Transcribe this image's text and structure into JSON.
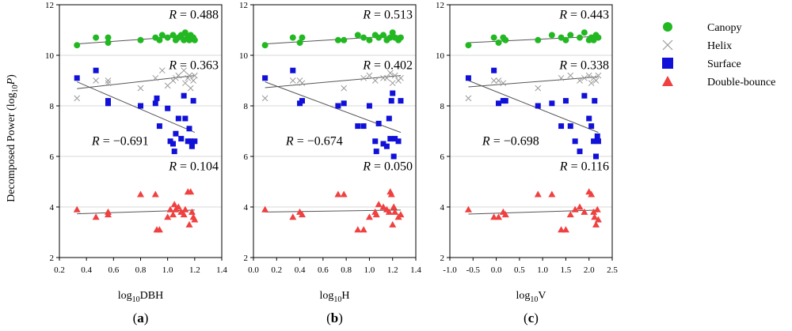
{
  "figure": {
    "y_axis_label": "Decomposed Power (log10P)",
    "y_label_parts": [
      "Decomposed Power (log",
      "10",
      "P",
      ")"
    ]
  },
  "legend": [
    {
      "name": "Canopy",
      "marker": "circle",
      "color": "#22b822"
    },
    {
      "name": "Helix",
      "marker": "x",
      "color": "#9a9a9a"
    },
    {
      "name": "Surface",
      "marker": "square",
      "color": "#1010d8"
    },
    {
      "name": "Double-bounce",
      "marker": "triangle",
      "color": "#f04040"
    }
  ],
  "colors": {
    "canopy": "#22b822",
    "helix": "#9a9a9a",
    "surface": "#1010d8",
    "double_bounce": "#f04040",
    "grid": "#d9d9d9",
    "fit": "#555555"
  },
  "chart_data": [
    {
      "type": "scatter",
      "panel_label": "(a)",
      "panel_label_parts": [
        "(",
        "a",
        ")"
      ],
      "xlabel": "log10DBH",
      "xlabel_parts": [
        "log",
        "10",
        "DBH"
      ],
      "xlim": [
        0.2,
        1.4
      ],
      "ylim": [
        2,
        12
      ],
      "xticks": [
        0.2,
        0.4,
        0.6,
        0.8,
        1.0,
        1.2,
        1.4
      ],
      "xtick_labels": [
        "0.2",
        "0.4",
        "0.6",
        "0.8",
        "1.0",
        "1.2",
        "1.4"
      ],
      "yticks": [
        2,
        4,
        6,
        8,
        10,
        12
      ],
      "ytick_labels": [
        "2",
        "4",
        "6",
        "8",
        "10",
        "12"
      ],
      "series": [
        {
          "name": "Canopy",
          "x": [
            0.33,
            0.47,
            0.56,
            0.56,
            0.8,
            0.91,
            0.94,
            0.96,
            1.0,
            1.04,
            1.06,
            1.08,
            1.1,
            1.12,
            1.13,
            1.15,
            1.16,
            1.17,
            1.19,
            1.2
          ],
          "y": [
            10.4,
            10.7,
            10.7,
            10.5,
            10.6,
            10.7,
            10.6,
            10.8,
            10.7,
            10.8,
            10.6,
            10.7,
            10.8,
            10.6,
            10.9,
            10.7,
            10.6,
            10.8,
            10.7,
            10.6
          ],
          "fit": {
            "x": [
              0.33,
              1.2
            ],
            "y": [
              10.45,
              10.78
            ]
          },
          "R": "0.488"
        },
        {
          "name": "Helix",
          "x": [
            0.33,
            0.47,
            0.56,
            0.56,
            0.8,
            0.91,
            0.96,
            1.0,
            1.04,
            1.06,
            1.08,
            1.12,
            1.13,
            1.15,
            1.16,
            1.17,
            1.19,
            1.2
          ],
          "y": [
            8.3,
            9.0,
            9.0,
            8.9,
            8.7,
            9.1,
            9.4,
            8.8,
            9.0,
            9.1,
            9.2,
            9.4,
            8.9,
            9.1,
            9.2,
            8.7,
            9.0,
            9.2
          ],
          "fit": {
            "x": [
              0.33,
              1.2
            ],
            "y": [
              8.68,
              9.2
            ]
          },
          "R": "0.363"
        },
        {
          "name": "Surface",
          "x": [
            0.33,
            0.47,
            0.56,
            0.56,
            0.8,
            0.91,
            0.92,
            0.94,
            1.0,
            1.02,
            1.04,
            1.05,
            1.06,
            1.08,
            1.1,
            1.12,
            1.13,
            1.15,
            1.16,
            1.17,
            1.18,
            1.19,
            1.2
          ],
          "y": [
            9.1,
            9.4,
            8.2,
            8.1,
            8.0,
            8.1,
            8.3,
            7.2,
            7.9,
            6.6,
            6.5,
            6.2,
            6.9,
            7.5,
            6.7,
            8.4,
            7.5,
            6.6,
            7.1,
            6.6,
            6.4,
            8.2,
            6.6
          ],
          "fit": {
            "x": [
              0.33,
              1.2
            ],
            "y": [
              8.95,
              6.95
            ]
          },
          "R": "−0.691"
        },
        {
          "name": "Double-bounce",
          "x": [
            0.33,
            0.47,
            0.56,
            0.56,
            0.8,
            0.91,
            0.92,
            0.94,
            1.0,
            1.02,
            1.04,
            1.05,
            1.06,
            1.08,
            1.1,
            1.12,
            1.13,
            1.15,
            1.16,
            1.17,
            1.18,
            1.19,
            1.2
          ],
          "y": [
            3.9,
            3.6,
            3.8,
            3.7,
            4.5,
            4.5,
            3.1,
            3.1,
            3.6,
            3.9,
            3.7,
            4.1,
            3.9,
            4.0,
            3.8,
            3.7,
            3.9,
            4.6,
            3.3,
            4.6,
            3.8,
            3.6,
            3.5
          ],
          "fit": {
            "x": [
              0.33,
              1.2
            ],
            "y": [
              3.73,
              3.88
            ]
          },
          "R": "0.104"
        }
      ]
    },
    {
      "type": "scatter",
      "panel_label": "(b)",
      "panel_label_parts": [
        "(",
        "b",
        ")"
      ],
      "xlabel": "log10H",
      "xlabel_parts": [
        "log",
        "10",
        "H"
      ],
      "xlim": [
        0.0,
        1.4
      ],
      "ylim": [
        2,
        12
      ],
      "xticks": [
        0.0,
        0.2,
        0.4,
        0.6,
        0.8,
        1.0,
        1.2,
        1.4
      ],
      "xtick_labels": [
        "0.0",
        "0.2",
        "0.4",
        "0.6",
        "0.8",
        "1.0",
        "1.2",
        "1.4"
      ],
      "yticks": [
        2,
        4,
        6,
        8,
        10,
        12
      ],
      "ytick_labels": [
        "2",
        "4",
        "6",
        "8",
        "10",
        "12"
      ],
      "series": [
        {
          "name": "Canopy",
          "x": [
            0.1,
            0.34,
            0.4,
            0.42,
            0.73,
            0.78,
            0.9,
            0.95,
            1.0,
            1.05,
            1.08,
            1.12,
            1.15,
            1.18,
            1.2,
            1.22,
            1.25,
            1.27
          ],
          "y": [
            10.4,
            10.7,
            10.5,
            10.7,
            10.6,
            10.6,
            10.8,
            10.7,
            10.6,
            10.8,
            10.7,
            10.8,
            10.6,
            10.7,
            10.9,
            10.7,
            10.6,
            10.7
          ],
          "fit": {
            "x": [
              0.1,
              1.27
            ],
            "y": [
              10.45,
              10.78
            ]
          },
          "R": "0.513"
        },
        {
          "name": "Helix",
          "x": [
            0.1,
            0.34,
            0.4,
            0.42,
            0.78,
            0.95,
            1.0,
            1.05,
            1.12,
            1.15,
            1.18,
            1.2,
            1.22,
            1.25,
            1.27
          ],
          "y": [
            8.3,
            9.0,
            9.0,
            8.9,
            8.7,
            9.1,
            9.2,
            9.0,
            9.1,
            9.1,
            9.3,
            8.9,
            9.2,
            9.0,
            9.1
          ],
          "fit": {
            "x": [
              0.1,
              1.27
            ],
            "y": [
              8.72,
              9.2
            ]
          },
          "R": "0.402"
        },
        {
          "name": "Surface",
          "x": [
            0.1,
            0.34,
            0.4,
            0.42,
            0.73,
            0.78,
            0.9,
            0.95,
            1.0,
            1.05,
            1.06,
            1.08,
            1.12,
            1.15,
            1.17,
            1.18,
            1.19,
            1.2,
            1.21,
            1.22,
            1.25,
            1.27
          ],
          "y": [
            9.1,
            9.4,
            8.1,
            8.2,
            8.0,
            8.1,
            7.2,
            7.2,
            8.0,
            6.6,
            6.2,
            7.3,
            6.5,
            6.4,
            7.5,
            6.7,
            8.2,
            8.5,
            6.0,
            6.7,
            6.6,
            8.2
          ],
          "fit": {
            "x": [
              0.1,
              1.27
            ],
            "y": [
              8.95,
              6.95
            ]
          },
          "R": "−0.674"
        },
        {
          "name": "Double-bounce",
          "x": [
            0.1,
            0.34,
            0.4,
            0.42,
            0.73,
            0.78,
            0.9,
            0.95,
            1.0,
            1.05,
            1.06,
            1.08,
            1.12,
            1.15,
            1.17,
            1.18,
            1.19,
            1.2,
            1.21,
            1.22,
            1.25,
            1.27
          ],
          "y": [
            3.9,
            3.6,
            3.8,
            3.7,
            4.5,
            4.5,
            3.1,
            3.1,
            3.6,
            3.8,
            3.7,
            4.1,
            4.0,
            3.9,
            3.8,
            4.6,
            4.5,
            3.3,
            4.0,
            3.8,
            3.6,
            3.7
          ],
          "fit": {
            "x": [
              0.1,
              1.27
            ],
            "y": [
              3.8,
              3.88
            ]
          },
          "R": "0.050"
        }
      ]
    },
    {
      "type": "scatter",
      "panel_label": "(c)",
      "panel_label_parts": [
        "(",
        "c",
        ")"
      ],
      "xlabel": "log10V",
      "xlabel_parts": [
        "log",
        "10",
        "V"
      ],
      "xlim": [
        -1.0,
        2.5
      ],
      "ylim": [
        2,
        12
      ],
      "xticks": [
        -1.0,
        -0.5,
        0.0,
        0.5,
        1.0,
        1.5,
        2.0,
        2.5
      ],
      "xtick_labels": [
        "-1.0",
        "-0.5",
        "0.0",
        "0.5",
        "1.0",
        "1.5",
        "2.0",
        "2.5"
      ],
      "yticks": [
        2,
        4,
        6,
        8,
        10,
        12
      ],
      "ytick_labels": [
        "2",
        "4",
        "6",
        "8",
        "10",
        "12"
      ],
      "series": [
        {
          "name": "Canopy",
          "x": [
            -0.6,
            -0.05,
            0.05,
            0.15,
            0.2,
            0.9,
            1.2,
            1.4,
            1.5,
            1.6,
            1.8,
            1.9,
            2.0,
            2.05,
            2.1,
            2.15,
            2.2
          ],
          "y": [
            10.4,
            10.7,
            10.5,
            10.7,
            10.6,
            10.6,
            10.8,
            10.7,
            10.6,
            10.8,
            10.7,
            10.9,
            10.6,
            10.7,
            10.6,
            10.8,
            10.7
          ],
          "fit": {
            "x": [
              -0.6,
              2.2
            ],
            "y": [
              10.5,
              10.75
            ]
          },
          "R": "0.443"
        },
        {
          "name": "Helix",
          "x": [
            -0.6,
            -0.05,
            0.05,
            0.15,
            0.9,
            1.4,
            1.6,
            1.8,
            1.9,
            2.0,
            2.05,
            2.1,
            2.15,
            2.2
          ],
          "y": [
            8.3,
            9.0,
            9.0,
            8.9,
            8.7,
            9.1,
            9.2,
            9.0,
            9.1,
            9.2,
            8.9,
            9.1,
            9.0,
            9.2
          ],
          "fit": {
            "x": [
              -0.6,
              2.2
            ],
            "y": [
              8.75,
              9.15
            ]
          },
          "R": "0.338"
        },
        {
          "name": "Surface",
          "x": [
            -0.6,
            -0.05,
            0.05,
            0.15,
            0.2,
            0.9,
            1.2,
            1.4,
            1.5,
            1.6,
            1.7,
            1.8,
            1.9,
            2.0,
            2.05,
            2.1,
            2.12,
            2.15,
            2.18,
            2.2
          ],
          "y": [
            9.1,
            9.4,
            8.1,
            8.2,
            8.2,
            8.0,
            8.1,
            7.2,
            8.2,
            7.2,
            6.6,
            6.2,
            8.4,
            7.5,
            7.2,
            6.6,
            8.2,
            6.0,
            6.8,
            6.6
          ],
          "fit": {
            "x": [
              -0.6,
              2.2
            ],
            "y": [
              9.0,
              6.95
            ]
          },
          "R": "−0.698"
        },
        {
          "name": "Double-bounce",
          "x": [
            -0.6,
            -0.05,
            0.05,
            0.15,
            0.2,
            0.9,
            1.2,
            1.4,
            1.5,
            1.6,
            1.7,
            1.8,
            1.9,
            2.0,
            2.05,
            2.1,
            2.12,
            2.15,
            2.18,
            2.2
          ],
          "y": [
            3.9,
            3.6,
            3.6,
            3.8,
            3.7,
            4.5,
            4.5,
            3.1,
            3.1,
            3.7,
            3.9,
            4.0,
            3.8,
            4.6,
            4.5,
            3.8,
            3.6,
            3.3,
            3.9,
            3.5
          ],
          "fit": {
            "x": [
              -0.6,
              2.2
            ],
            "y": [
              3.72,
              3.88
            ]
          },
          "R": "0.116"
        }
      ]
    }
  ]
}
